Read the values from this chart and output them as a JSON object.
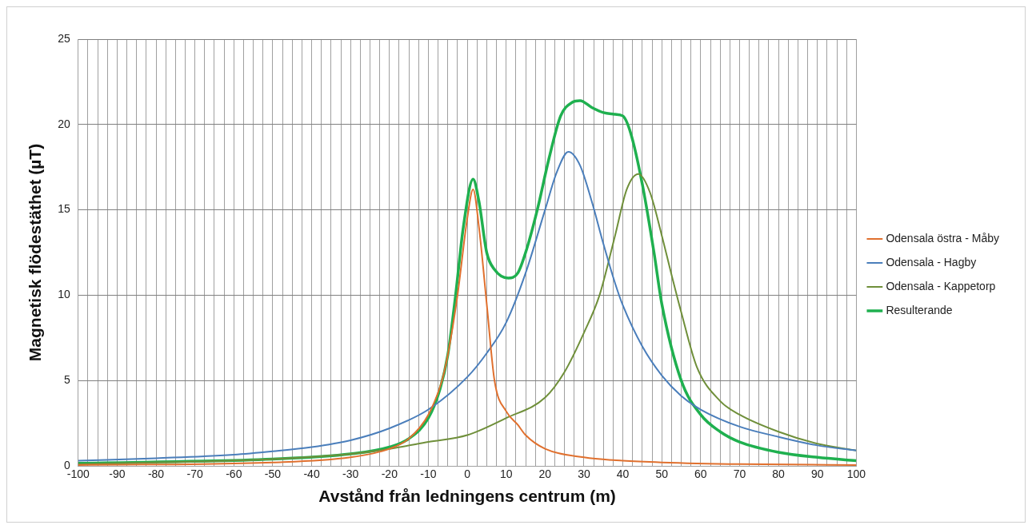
{
  "chart_data": {
    "type": "line",
    "xlabel": "Avstånd från ledningens centrum (m)",
    "ylabel": "Magnetisk flödestäthet (µT)",
    "xlim": [
      -100,
      100
    ],
    "ylim": [
      0,
      25
    ],
    "yticks": [
      0,
      5,
      10,
      15,
      20,
      25
    ],
    "xticks": [
      -100,
      {
        "value": -97.5,
        "label": null
      },
      {
        "value": -95,
        "label": null
      },
      {
        "value": -92.5,
        "label": null
      },
      -90,
      {
        "value": -87.5,
        "label": null
      },
      {
        "value": -85,
        "label": null
      },
      {
        "value": -82.5,
        "label": null
      },
      -80,
      {
        "value": -77.5,
        "label": null
      },
      {
        "value": -75,
        "label": null
      },
      {
        "value": -72.5,
        "label": null
      },
      -70,
      {
        "value": -67.5,
        "label": null
      },
      {
        "value": -65,
        "label": null
      },
      {
        "value": -62.5,
        "label": null
      },
      -60,
      {
        "value": -57.5,
        "label": null
      },
      {
        "value": -55,
        "label": null
      },
      {
        "value": -52.5,
        "label": null
      },
      -50,
      {
        "value": -47.5,
        "label": null
      },
      {
        "value": -45,
        "label": null
      },
      {
        "value": -42.5,
        "label": null
      },
      -40,
      {
        "value": -37.5,
        "label": null
      },
      {
        "value": -35,
        "label": null
      },
      {
        "value": -32.5,
        "label": null
      },
      -30,
      {
        "value": -27.5,
        "label": null
      },
      {
        "value": -25,
        "label": null
      },
      {
        "value": -22.5,
        "label": null
      },
      -20,
      {
        "value": -17.5,
        "label": null
      },
      {
        "value": -15,
        "label": null
      },
      {
        "value": -12.5,
        "label": null
      },
      -10,
      {
        "value": -7.5,
        "label": null
      },
      {
        "value": -5,
        "label": null
      },
      {
        "value": -2.5,
        "label": null
      },
      0,
      {
        "value": 2.5,
        "label": null
      },
      {
        "value": 5,
        "label": null
      },
      {
        "value": 7.5,
        "label": null
      },
      10,
      {
        "value": 12.5,
        "label": null
      },
      {
        "value": 15,
        "label": null
      },
      {
        "value": 17.5,
        "label": null
      },
      20,
      {
        "value": 22.5,
        "label": null
      },
      {
        "value": 25,
        "label": null
      },
      {
        "value": 27.5,
        "label": null
      },
      30,
      {
        "value": 32.5,
        "label": null
      },
      {
        "value": 35,
        "label": null
      },
      {
        "value": 37.5,
        "label": null
      },
      40,
      {
        "value": 42.5,
        "label": null
      },
      {
        "value": 45,
        "label": null
      },
      {
        "value": 47.5,
        "label": null
      },
      50,
      {
        "value": 52.5,
        "label": null
      },
      {
        "value": 55,
        "label": null
      },
      {
        "value": 57.5,
        "label": null
      },
      60,
      {
        "value": 62.5,
        "label": null
      },
      {
        "value": 65,
        "label": null
      },
      {
        "value": 67.5,
        "label": null
      },
      70,
      {
        "value": 72.5,
        "label": null
      },
      {
        "value": 75,
        "label": null
      },
      {
        "value": 77.5,
        "label": null
      },
      80,
      {
        "value": 82.5,
        "label": null
      },
      {
        "value": 85,
        "label": null
      },
      {
        "value": 87.5,
        "label": null
      },
      90,
      {
        "value": 92.5,
        "label": null
      },
      {
        "value": 95,
        "label": null
      },
      {
        "value": 97.5,
        "label": null
      },
      100
    ],
    "grid": true,
    "legend": "right",
    "marker": "none",
    "line_style": "solid",
    "series": [
      {
        "name": "Odensala östra - Måby",
        "color": "#e0702e",
        "x": [
          -100,
          -50,
          -30,
          -20,
          -15,
          -10,
          -6.5,
          -5,
          -2.5,
          0,
          1.5,
          3,
          5,
          7,
          10,
          13,
          15,
          20,
          30,
          40,
          50,
          70,
          100
        ],
        "values": [
          0.05,
          0.2,
          0.5,
          1.0,
          1.6,
          3.0,
          5.0,
          6.5,
          10,
          14.5,
          16.2,
          14,
          9.5,
          5,
          3.2,
          2.4,
          1.8,
          1.0,
          0.5,
          0.3,
          0.2,
          0.1,
          0.05
        ]
      },
      {
        "name": "Odensala - Hagby",
        "color": "#4a7ebb",
        "x": [
          -100,
          -80,
          -60,
          -50,
          -40,
          -30,
          -20,
          -10,
          0,
          5,
          10,
          15,
          20,
          23,
          26,
          29,
          32,
          35,
          38,
          40,
          45,
          50,
          55,
          60,
          70,
          80,
          90,
          100
        ],
        "values": [
          0.3,
          0.45,
          0.65,
          0.85,
          1.1,
          1.5,
          2.2,
          3.3,
          5.2,
          6.6,
          8.4,
          11.3,
          15.0,
          17.2,
          18.4,
          17.6,
          15.5,
          13,
          10.7,
          9.4,
          7,
          5.3,
          4.1,
          3.3,
          2.3,
          1.7,
          1.2,
          0.9
        ]
      },
      {
        "name": "Odensala - Kappetorp",
        "color": "#6f8f3a",
        "x": [
          -100,
          -50,
          -30,
          -20,
          -10,
          0,
          10,
          20,
          25,
          30,
          34,
          38,
          41,
          44,
          47,
          50,
          52.5,
          55,
          59,
          65,
          70,
          80,
          90,
          100
        ],
        "values": [
          0.1,
          0.4,
          0.7,
          1.0,
          1.4,
          1.8,
          2.8,
          4.0,
          5.5,
          7.8,
          10,
          13.5,
          16.2,
          17.1,
          16,
          13.5,
          11.2,
          9.0,
          5.8,
          3.8,
          3.0,
          2.0,
          1.3,
          0.9
        ]
      },
      {
        "name": "Resulterande",
        "color": "#1fb04f",
        "x": [
          -100,
          -50,
          -30,
          -20,
          -15,
          -10,
          -7,
          -5,
          -3,
          -1,
          1.5,
          3,
          5,
          7,
          10.5,
          13,
          15,
          18,
          21,
          24,
          27,
          29,
          32,
          35,
          38,
          40,
          42,
          45,
          48,
          50,
          55,
          60,
          65,
          70,
          80,
          90,
          100
        ],
        "values": [
          0.15,
          0.4,
          0.7,
          1.1,
          1.6,
          2.8,
          4.5,
          6.5,
          10,
          14,
          16.8,
          15.5,
          12.5,
          11.5,
          11.0,
          11.3,
          12.5,
          15,
          18,
          20.5,
          21.3,
          21.4,
          21.0,
          20.7,
          20.6,
          20.5,
          19.5,
          16.5,
          12.5,
          9.5,
          5.0,
          3.0,
          2.0,
          1.4,
          0.8,
          0.5,
          0.3
        ]
      }
    ]
  }
}
